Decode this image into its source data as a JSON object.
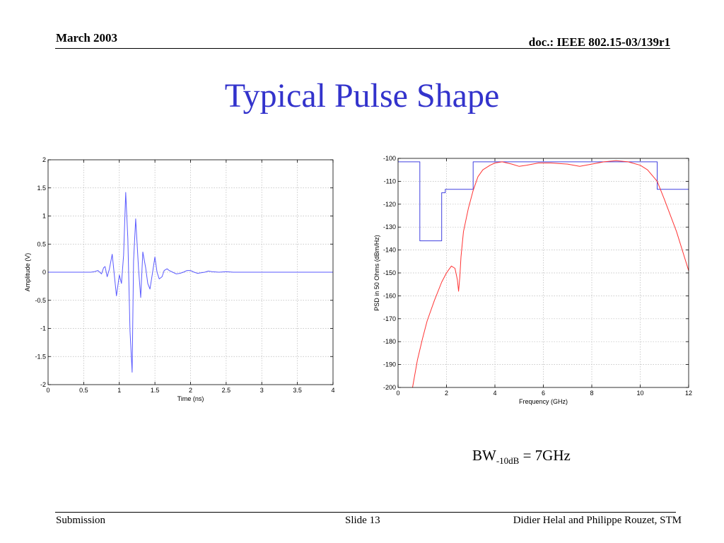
{
  "header": {
    "date": "March 2003",
    "doc_id": "doc.: IEEE 802.15-03/139r1"
  },
  "title": "Typical Pulse Shape",
  "bandwidth": {
    "prefix": "BW",
    "subscript": "-10dB",
    "suffix": " = 7GHz"
  },
  "footer": {
    "left": "Submission",
    "center": "Slide 13",
    "right": "Didier Helal and Philippe Rouzet, STM"
  },
  "colors": {
    "title": "#3333cc",
    "pulse": "#5a5aff",
    "mask": "#4040e0",
    "psd": "#ff3333",
    "grid": "#b8b8b8"
  },
  "chart_data": [
    {
      "type": "line",
      "title": "",
      "xlabel": "Time (ns)",
      "ylabel": "Amplitude (V)",
      "xlim": [
        0,
        4
      ],
      "ylim": [
        -2,
        2
      ],
      "xticks": [
        0,
        0.5,
        1,
        1.5,
        2,
        2.5,
        3,
        3.5,
        4
      ],
      "yticks": [
        -2,
        -1.5,
        -1,
        -0.5,
        0,
        0.5,
        1,
        1.5,
        2
      ],
      "grid": true,
      "series": [
        {
          "x": [
            0,
            0.6,
            0.65,
            0.7,
            0.75,
            0.78,
            0.8,
            0.83,
            0.86,
            0.9,
            0.93,
            0.96,
            1.0,
            1.03,
            1.06,
            1.09,
            1.12,
            1.15,
            1.18,
            1.2,
            1.23,
            1.27,
            1.3,
            1.33,
            1.37,
            1.4,
            1.43,
            1.47,
            1.5,
            1.53,
            1.56,
            1.6,
            1.63,
            1.67,
            1.7,
            1.75,
            1.8,
            1.85,
            1.9,
            1.95,
            2.0,
            2.05,
            2.1,
            2.15,
            2.2,
            2.25,
            2.3,
            2.4,
            2.5,
            2.6,
            2.8,
            3.0,
            4.0
          ],
          "y": [
            0,
            0,
            0.01,
            0.03,
            -0.03,
            0.08,
            0.1,
            -0.08,
            0.05,
            0.32,
            -0.05,
            -0.42,
            -0.05,
            -0.2,
            0.3,
            1.42,
            0.6,
            -1.05,
            -1.78,
            0.2,
            0.95,
            0.05,
            -0.45,
            0.36,
            0.08,
            -0.2,
            -0.3,
            0.02,
            0.27,
            0.0,
            -0.12,
            -0.08,
            0.03,
            0.06,
            0.03,
            0.0,
            -0.03,
            -0.02,
            0.0,
            0.03,
            0.03,
            0.0,
            -0.02,
            -0.01,
            0.0,
            0.02,
            0.01,
            0.0,
            0.01,
            0.0,
            0.0,
            0.0,
            0.0
          ]
        }
      ]
    },
    {
      "type": "line",
      "title": "",
      "xlabel": "Frequency (GHz)",
      "ylabel": "PSD in 50 Ohms (dBm/Hz)",
      "xlim": [
        0,
        12
      ],
      "ylim": [
        -200,
        -100
      ],
      "xticks": [
        0,
        2,
        4,
        6,
        8,
        10,
        12
      ],
      "yticks": [
        -100,
        -110,
        -120,
        -130,
        -140,
        -150,
        -160,
        -170,
        -180,
        -190,
        -200
      ],
      "grid": true,
      "series": [
        {
          "style": "step-mask",
          "x": [
            0,
            0.9,
            0.9,
            1.8,
            1.8,
            1.95,
            1.95,
            3.1,
            3.1,
            10.7,
            10.7,
            12
          ],
          "y": [
            -101.5,
            -101.5,
            -136,
            -136,
            -115,
            -115,
            -113.5,
            -113.5,
            -101.5,
            -101.5,
            -113.5,
            -113.5
          ]
        },
        {
          "style": "psd",
          "x": [
            0.6,
            0.8,
            1.0,
            1.2,
            1.5,
            1.8,
            2.0,
            2.2,
            2.35,
            2.45,
            2.5,
            2.55,
            2.6,
            2.7,
            2.9,
            3.1,
            3.3,
            3.5,
            3.8,
            4.0,
            4.3,
            4.7,
            5.0,
            5.3,
            5.8,
            6.3,
            7.0,
            7.5,
            8.0,
            8.5,
            9.0,
            9.5,
            10.0,
            10.3,
            10.7,
            11.0,
            11.5,
            12.0
          ],
          "y": [
            -200,
            -188,
            -179,
            -171,
            -162,
            -154,
            -150,
            -147,
            -148,
            -153,
            -158,
            -152,
            -143,
            -132,
            -122,
            -114,
            -108,
            -105,
            -103,
            -102,
            -101.5,
            -102.5,
            -103.5,
            -103,
            -102,
            -102,
            -102.5,
            -103.5,
            -102.5,
            -101.5,
            -101,
            -101.5,
            -103,
            -105,
            -110,
            -118,
            -132,
            -149
          ]
        }
      ]
    }
  ]
}
